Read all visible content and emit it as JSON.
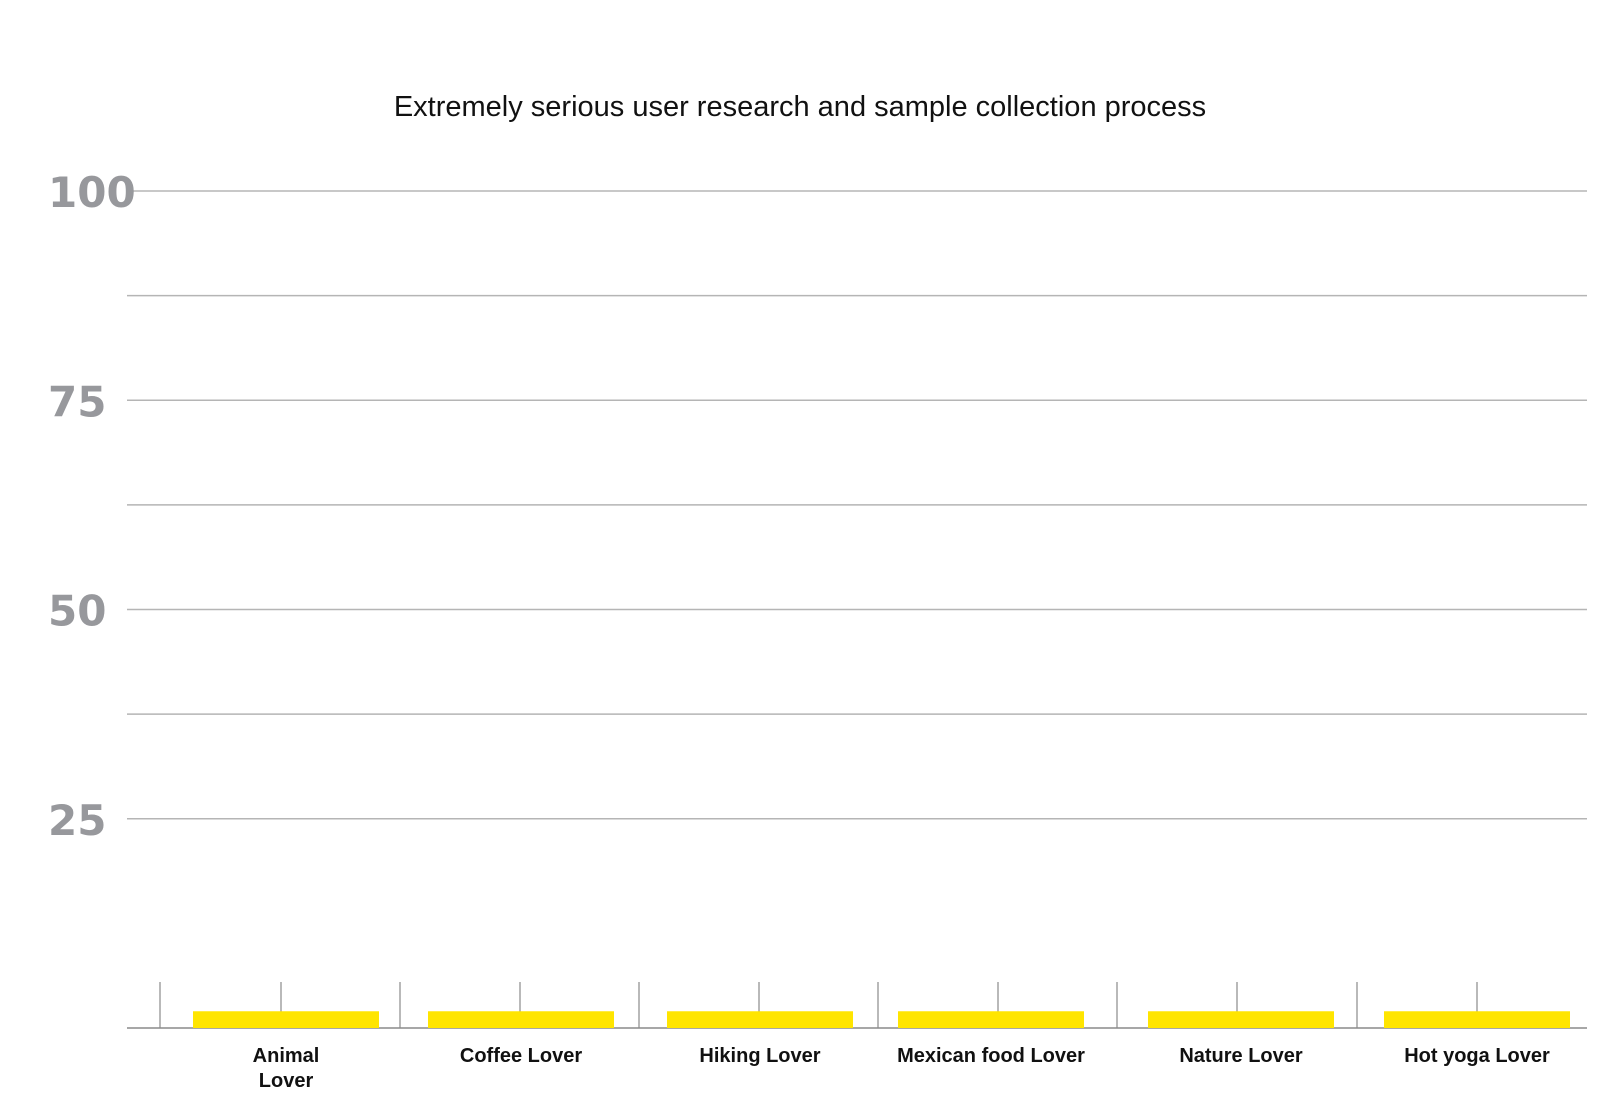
{
  "chart_data": {
    "type": "bar",
    "title": "Extremely serious user research and sample collection process",
    "xlabel": "",
    "ylabel": "",
    "categories": [
      [
        "Animal",
        "Lover"
      ],
      [
        "Coffee Lover"
      ],
      [
        "Hiking Lover"
      ],
      [
        "Mexican food Lover"
      ],
      [
        "Nature Lover"
      ],
      [
        "Hot yoga Lover"
      ]
    ],
    "values": [
      2,
      2,
      2,
      2,
      2,
      2
    ],
    "ylim": [
      0,
      100
    ],
    "yticks": [
      25,
      50,
      75,
      100
    ],
    "ytick_labels": [
      "25",
      "50",
      "75",
      "100"
    ],
    "grid": true,
    "bar_color": "#ffe500",
    "grid_color": "#b5b5b5",
    "ytick_color": "#97989c"
  }
}
